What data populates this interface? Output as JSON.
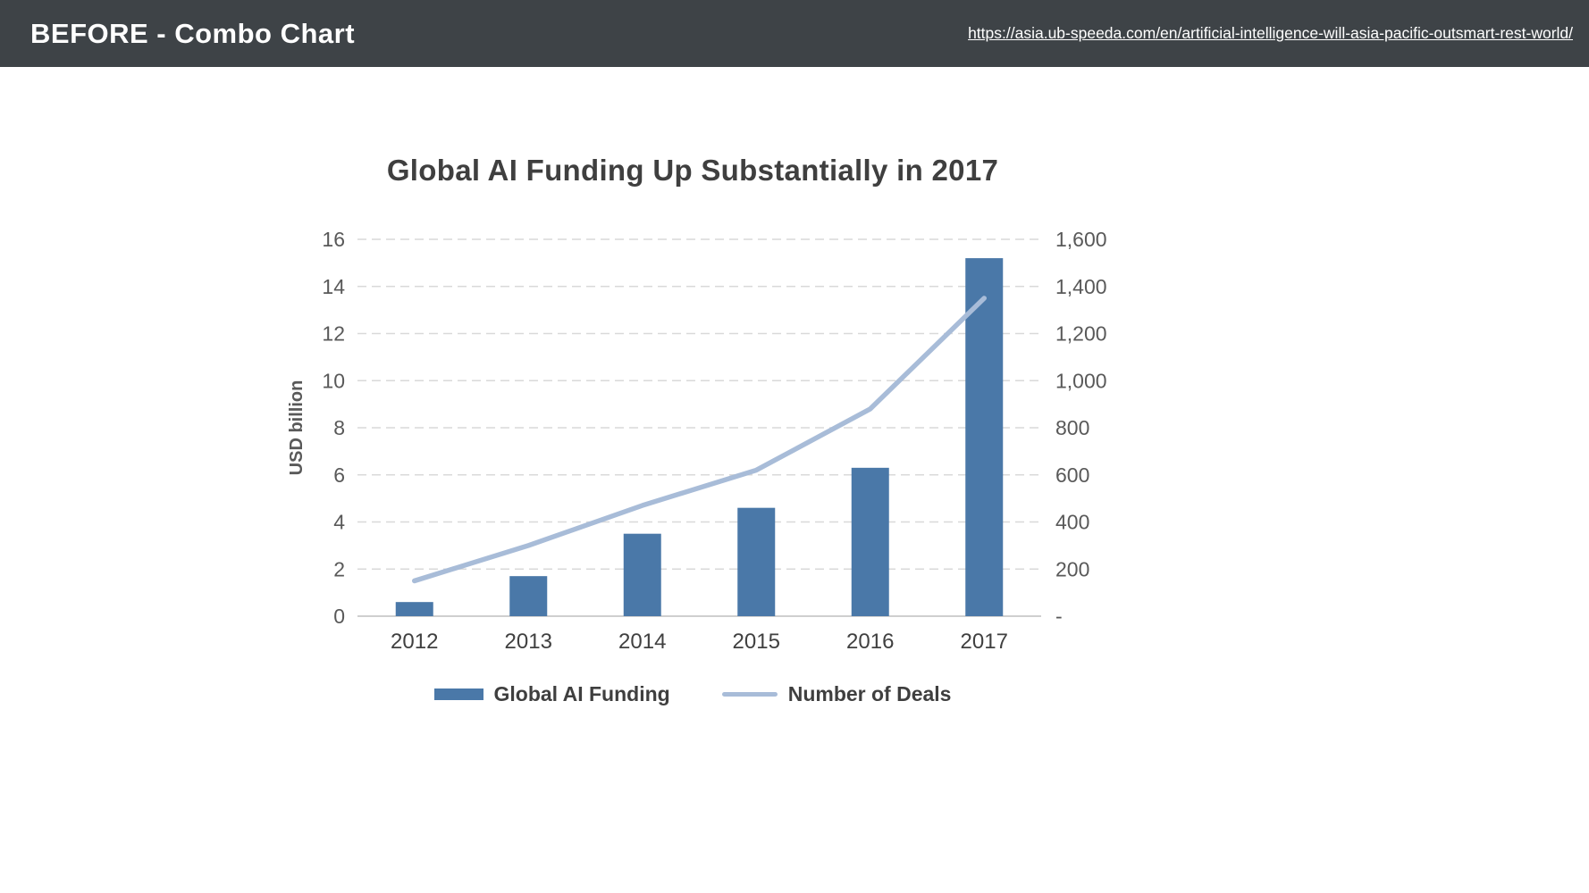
{
  "header": {
    "title": "BEFORE - Combo Chart",
    "url": "https://asia.ub-speeda.com/en/artificial-intelligence-will-asia-pacific-outsmart-rest-world/"
  },
  "chart_data": {
    "type": "combo",
    "title": "Global AI Funding Up Substantially in 2017",
    "categories": [
      "2012",
      "2013",
      "2014",
      "2015",
      "2016",
      "2017"
    ],
    "series": [
      {
        "name": "Global AI Funding",
        "type": "bar",
        "axis": "left",
        "values": [
          0.6,
          1.7,
          3.5,
          4.6,
          6.3,
          15.2
        ],
        "color": "#4a78a8"
      },
      {
        "name": "Number of Deals",
        "type": "line",
        "axis": "right",
        "values": [
          150,
          300,
          470,
          620,
          880,
          1350
        ],
        "color": "#a8bcd8"
      }
    ],
    "left_axis": {
      "label": "USD billion",
      "min": 0,
      "max": 16,
      "ticks": [
        0,
        2,
        4,
        6,
        8,
        10,
        12,
        14,
        16
      ]
    },
    "right_axis": {
      "label": "",
      "min": 0,
      "max": 1600,
      "ticks": [
        "-",
        "200",
        "400",
        "600",
        "800",
        "1,000",
        "1,200",
        "1,400",
        "1,600"
      ]
    },
    "grid": "dashed horizontal gridlines",
    "legend_position": "bottom",
    "colors": {
      "bar": "#4a78a8",
      "line": "#a8bcd8",
      "grid": "#d9d9d9",
      "axis": "#bfbfbf",
      "text": "#595959",
      "category_text": "#404040",
      "title": "#3f3f3f",
      "header_bg": "#3e4347"
    }
  }
}
